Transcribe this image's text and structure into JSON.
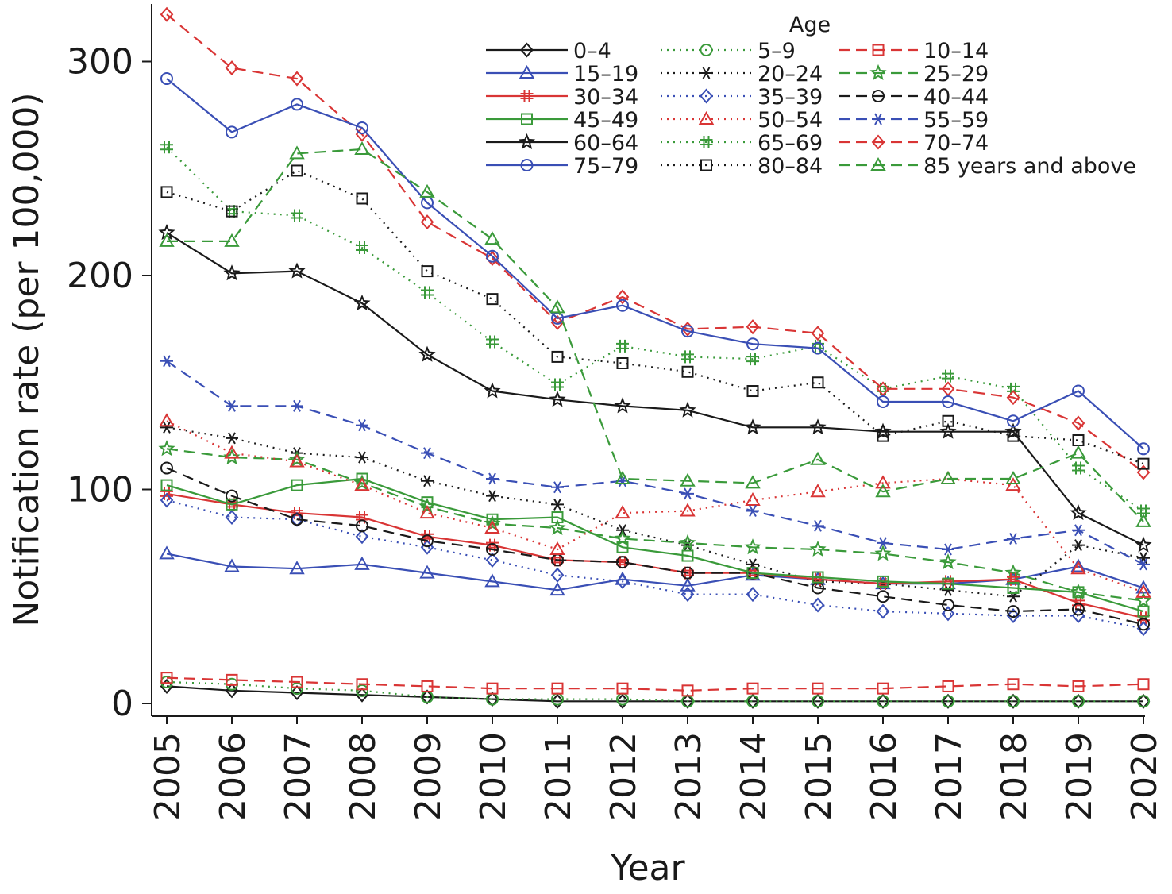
{
  "chart_data": {
    "type": "line",
    "xlabel": "Year",
    "ylabel": "Notification rate (per 100,000)",
    "ylim": [
      -7,
      325
    ],
    "yticks": [
      0,
      100,
      200,
      300
    ],
    "legend_title": "Age",
    "legend_position": "top-right",
    "x": [
      2005,
      2006,
      2007,
      2008,
      2009,
      2010,
      2011,
      2012,
      2013,
      2014,
      2015,
      2016,
      2017,
      2018,
      2019,
      2020
    ],
    "x_tick_labels": [
      "2005",
      "2006",
      "2007",
      "2008",
      "2009",
      "2010",
      "2011",
      "2012",
      "2013",
      "2014",
      "2015",
      "2016",
      "2017",
      "2018",
      "2019",
      "2020"
    ],
    "series": [
      {
        "name": "0–4",
        "color": "#1a1a1a",
        "dash": "solid",
        "marker": "diamond",
        "values": [
          8,
          6,
          5,
          4,
          3,
          2,
          1,
          1,
          1,
          1,
          1,
          1,
          1,
          1,
          1,
          1
        ]
      },
      {
        "name": "5–9",
        "color": "#3a9a3a",
        "dash": "dot",
        "marker": "circle",
        "values": [
          10,
          9,
          7,
          6,
          3,
          2,
          2,
          2,
          1,
          1,
          1,
          1,
          1,
          1,
          1,
          1
        ]
      },
      {
        "name": "10–14",
        "color": "#d93535",
        "dash": "dash",
        "marker": "square",
        "values": [
          12,
          11,
          10,
          9,
          8,
          7,
          7,
          7,
          6,
          7,
          7,
          7,
          8,
          9,
          8,
          9
        ]
      },
      {
        "name": "15–19",
        "color": "#3a4fb5",
        "dash": "solid",
        "marker": "triangle",
        "values": [
          70,
          64,
          63,
          65,
          61,
          57,
          53,
          58,
          55,
          60,
          58,
          56,
          56,
          58,
          64,
          54
        ]
      },
      {
        "name": "20–24",
        "color": "#1a1a1a",
        "dash": "dot",
        "marker": "asterisk",
        "values": [
          129,
          124,
          117,
          115,
          104,
          97,
          93,
          81,
          74,
          65,
          57,
          56,
          53,
          50,
          74,
          68
        ]
      },
      {
        "name": "25–29",
        "color": "#3a9a3a",
        "dash": "dash",
        "marker": "star",
        "values": [
          119,
          115,
          114,
          103,
          92,
          84,
          82,
          77,
          75,
          73,
          72,
          70,
          66,
          61,
          52,
          48
        ]
      },
      {
        "name": "30–34",
        "color": "#d93535",
        "dash": "solid",
        "marker": "hash",
        "values": [
          98,
          93,
          89,
          87,
          78,
          74,
          67,
          66,
          61,
          61,
          58,
          56,
          57,
          58,
          47,
          40
        ]
      },
      {
        "name": "35–39",
        "color": "#3a4fb5",
        "dash": "dot",
        "marker": "diamond",
        "values": [
          95,
          87,
          86,
          78,
          73,
          67,
          60,
          57,
          51,
          51,
          46,
          43,
          42,
          41,
          41,
          35
        ]
      },
      {
        "name": "40–44",
        "color": "#1a1a1a",
        "dash": "dash",
        "marker": "circle",
        "values": [
          110,
          97,
          86,
          83,
          76,
          72,
          67,
          66,
          61,
          61,
          54,
          50,
          46,
          43,
          44,
          37
        ]
      },
      {
        "name": "45–49",
        "color": "#3a9a3a",
        "dash": "solid",
        "marker": "square",
        "values": [
          102,
          93,
          102,
          105,
          94,
          86,
          87,
          73,
          69,
          61,
          59,
          57,
          56,
          54,
          52,
          43
        ]
      },
      {
        "name": "50–54",
        "color": "#d93535",
        "dash": "dot",
        "marker": "triangle",
        "values": [
          132,
          117,
          113,
          102,
          89,
          82,
          72,
          89,
          90,
          95,
          99,
          103,
          105,
          102,
          63,
          52
        ]
      },
      {
        "name": "55–59",
        "color": "#3a4fb5",
        "dash": "dash",
        "marker": "asterisk",
        "values": [
          160,
          139,
          139,
          130,
          117,
          105,
          101,
          104,
          98,
          90,
          83,
          75,
          72,
          77,
          81,
          65
        ]
      },
      {
        "name": "60–64",
        "color": "#1a1a1a",
        "dash": "solid",
        "marker": "star",
        "values": [
          220,
          201,
          202,
          187,
          163,
          146,
          142,
          139,
          137,
          129,
          129,
          127,
          127,
          127,
          89,
          74
        ]
      },
      {
        "name": "65–69",
        "color": "#3a9a3a",
        "dash": "dot",
        "marker": "hash",
        "values": [
          260,
          230,
          228,
          213,
          192,
          169,
          149,
          167,
          162,
          161,
          167,
          147,
          153,
          147,
          110,
          90
        ]
      },
      {
        "name": "70–74",
        "color": "#d93535",
        "dash": "dash",
        "marker": "diamond",
        "values": [
          322,
          297,
          292,
          266,
          225,
          208,
          178,
          190,
          175,
          176,
          173,
          147,
          147,
          143,
          131,
          108
        ]
      },
      {
        "name": "75–79",
        "color": "#3a4fb5",
        "dash": "solid",
        "marker": "circle",
        "values": [
          292,
          267,
          280,
          269,
          234,
          209,
          180,
          186,
          174,
          168,
          166,
          141,
          141,
          132,
          146,
          119
        ]
      },
      {
        "name": "80–84",
        "color": "#1a1a1a",
        "dash": "dot",
        "marker": "square",
        "values": [
          239,
          230,
          249,
          236,
          202,
          189,
          162,
          159,
          155,
          146,
          150,
          125,
          132,
          125,
          123,
          112
        ]
      },
      {
        "name": "85 years and above",
        "color": "#3a9a3a",
        "dash": "dash",
        "marker": "triangle",
        "values": [
          216,
          216,
          257,
          259,
          239,
          217,
          185,
          105,
          104,
          103,
          114,
          99,
          105,
          105,
          117,
          85
        ]
      }
    ]
  }
}
